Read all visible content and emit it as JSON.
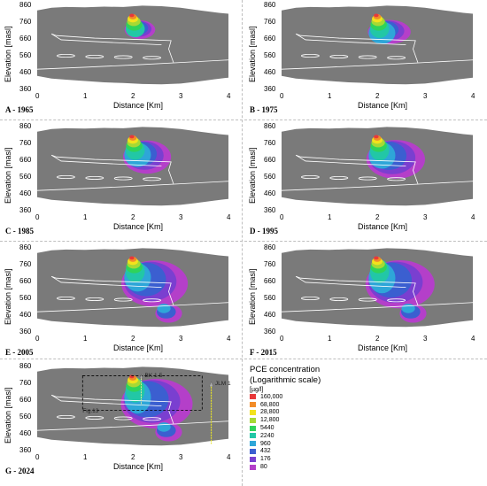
{
  "panels": [
    {
      "label": "A - 1965",
      "ylabel": "Elevation [masl]",
      "xlabel": "Distance [Km]",
      "stage": 0
    },
    {
      "label": "B - 1975",
      "ylabel": "Elevation [masl]",
      "xlabel": "Distance [Km]",
      "stage": 1
    },
    {
      "label": "C - 1985",
      "ylabel": "Elevation [masl]",
      "xlabel": "Distance [Km]",
      "stage": 2
    },
    {
      "label": "D - 1995",
      "ylabel": "Elevation [masl]",
      "xlabel": "Distance [Km]",
      "stage": 3
    },
    {
      "label": "E - 2005",
      "ylabel": "Elevation [masl]",
      "xlabel": "Distance [Km]",
      "stage": 4
    },
    {
      "label": "F - 2015",
      "ylabel": "Elevation [masl]",
      "xlabel": "Distance [Km]",
      "stage": 5
    },
    {
      "label": "G - 2024",
      "ylabel": "Elevation [masl]",
      "xlabel": "Distance [Km]",
      "stage": 6
    }
  ],
  "axes": {
    "y_ticks": [
      "860",
      "760",
      "660",
      "560",
      "460",
      "360"
    ],
    "x_ticks": [
      "0",
      "1",
      "2",
      "3",
      "4"
    ],
    "y_range": [
      360,
      860
    ],
    "x_range": [
      0,
      4
    ]
  },
  "annotations": {
    "well_bk": "BK 1-5",
    "well_jlm": "JLM 1",
    "fig_ref": "Fig.13"
  },
  "legend": {
    "title_line1": "PCE concentration",
    "title_line2": "(Logarithmic scale)",
    "unit": "[µg/l]",
    "items": [
      {
        "value": "160,000",
        "color": "#e8383a"
      },
      {
        "value": "68,800",
        "color": "#f28c28"
      },
      {
        "value": "28,800",
        "color": "#f3e21c"
      },
      {
        "value": "12,800",
        "color": "#a6d934"
      },
      {
        "value": "5440",
        "color": "#2fd35a"
      },
      {
        "value": "2240",
        "color": "#22c7a6"
      },
      {
        "value": "960",
        "color": "#2ea6d8"
      },
      {
        "value": "432",
        "color": "#3b5fd0"
      },
      {
        "value": "176",
        "color": "#7a3fd0"
      },
      {
        "value": "80",
        "color": "#b43fc9"
      }
    ]
  },
  "colors": {
    "rock": "#7a7a7a",
    "line": "#ffffff",
    "bk_marker": "#b0b0b0",
    "jlm_marker": "#e6e22a"
  }
}
